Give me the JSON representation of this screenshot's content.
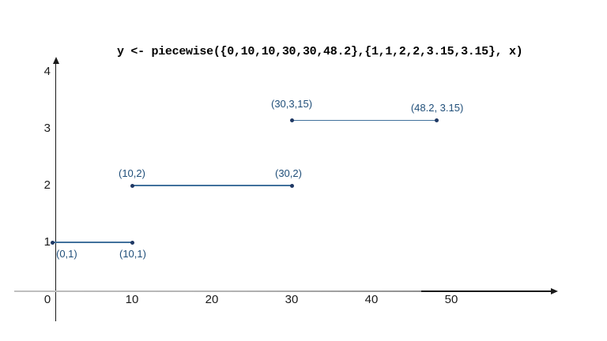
{
  "colors": {
    "segment_line": "#41719c",
    "point_dot": "#1f3864",
    "point_label": "#1f4e79",
    "axis": "#1a1a1a",
    "axis_gray": "#b3b3b3",
    "title_text": "#000000"
  },
  "chart_data": {
    "type": "line",
    "title": "y <- piecewise({0,10,10,30,30,48.2},{1,1,2,2,3.15,3.15}, x)",
    "xlabel": "",
    "ylabel": "",
    "grid": false,
    "legend": false,
    "xlim": [
      -5,
      63
    ],
    "ylim": [
      -0.7,
      4.3
    ],
    "x_ticks": [
      0,
      10,
      20,
      30,
      40,
      50
    ],
    "y_ticks": [
      1,
      2,
      3,
      4
    ],
    "origin_label": "0",
    "segments": [
      {
        "name": "segment-1",
        "y": 1,
        "points": [
          {
            "x": 0,
            "y": 1,
            "label": "(0,1)",
            "label_dx": 5,
            "label_dy": 7
          },
          {
            "x": 10,
            "y": 1,
            "label": "(10,1)",
            "label_dx": -16,
            "label_dy": 7
          }
        ]
      },
      {
        "name": "segment-2",
        "y": 2,
        "points": [
          {
            "x": 10,
            "y": 2,
            "label": "(10,2)",
            "label_dx": -17,
            "label_dy": -23
          },
          {
            "x": 30,
            "y": 2,
            "label": "(30,2)",
            "label_dx": -21,
            "label_dy": -23
          }
        ]
      },
      {
        "name": "segment-3",
        "y": 3.15,
        "points": [
          {
            "x": 30,
            "y": 3.15,
            "label": "(30,3,15)",
            "label_dx": -26,
            "label_dy": -28
          },
          {
            "x": 48.2,
            "y": 3.15,
            "label": "(48.2, 3.15)",
            "label_dx": -33,
            "label_dy": -23
          }
        ]
      }
    ]
  }
}
